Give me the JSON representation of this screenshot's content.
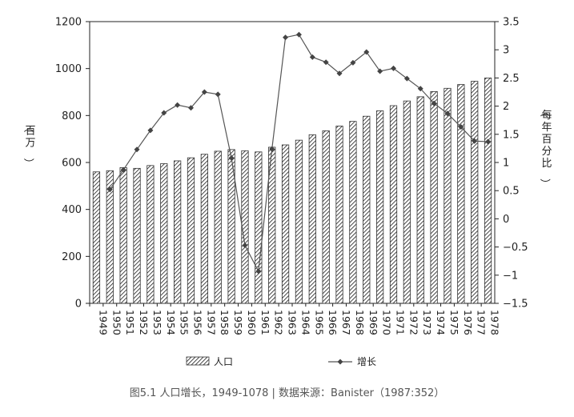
{
  "caption": "图5.1 人口增长，1949-1078 | 数据来源：Banister（1987:352）",
  "chart_data": {
    "type": "bar+line",
    "categories": [
      "1949",
      "1950",
      "1951",
      "1952",
      "1953",
      "1954",
      "1955",
      "1956",
      "1957",
      "1958",
      "1959",
      "1960",
      "1961",
      "1962",
      "1963",
      "1964",
      "1965",
      "1966",
      "1967",
      "1968",
      "1969",
      "1970",
      "1971",
      "1972",
      "1973",
      "1974",
      "1975",
      "1976",
      "1977",
      "1978"
    ],
    "series": [
      {
        "name": "人口",
        "type": "bar",
        "axis": "left",
        "values": [
          560,
          565,
          578,
          575,
          587,
          595,
          607,
          620,
          635,
          648,
          655,
          650,
          645,
          665,
          675,
          695,
          718,
          735,
          755,
          775,
          797,
          820,
          842,
          862,
          880,
          902,
          916,
          932,
          946,
          960
        ]
      },
      {
        "name": "增长",
        "type": "line",
        "axis": "right",
        "values": [
          null,
          0.52,
          0.87,
          1.23,
          1.57,
          1.88,
          2.02,
          1.97,
          2.25,
          2.21,
          1.08,
          -0.47,
          -0.93,
          1.24,
          3.22,
          3.27,
          2.87,
          2.78,
          2.58,
          2.77,
          2.96,
          2.62,
          2.67,
          2.49,
          2.31,
          2.05,
          1.87,
          1.63,
          1.38,
          1.37
        ]
      }
    ],
    "y_left": {
      "label": "（百万）",
      "ticks": [
        0,
        200,
        400,
        600,
        800,
        1000,
        1200
      ],
      "ylim": [
        0,
        1200
      ]
    },
    "y_right": {
      "label": "（每年百分比）",
      "ticks": [
        -1.5,
        -1,
        -0.5,
        0,
        0.5,
        1,
        1.5,
        2,
        2.5,
        3,
        3.5
      ],
      "ylim": [
        -1.5,
        3.5
      ]
    },
    "legend": {
      "position": "bottom",
      "entries": [
        "人口",
        "增长"
      ]
    },
    "grid": false
  }
}
